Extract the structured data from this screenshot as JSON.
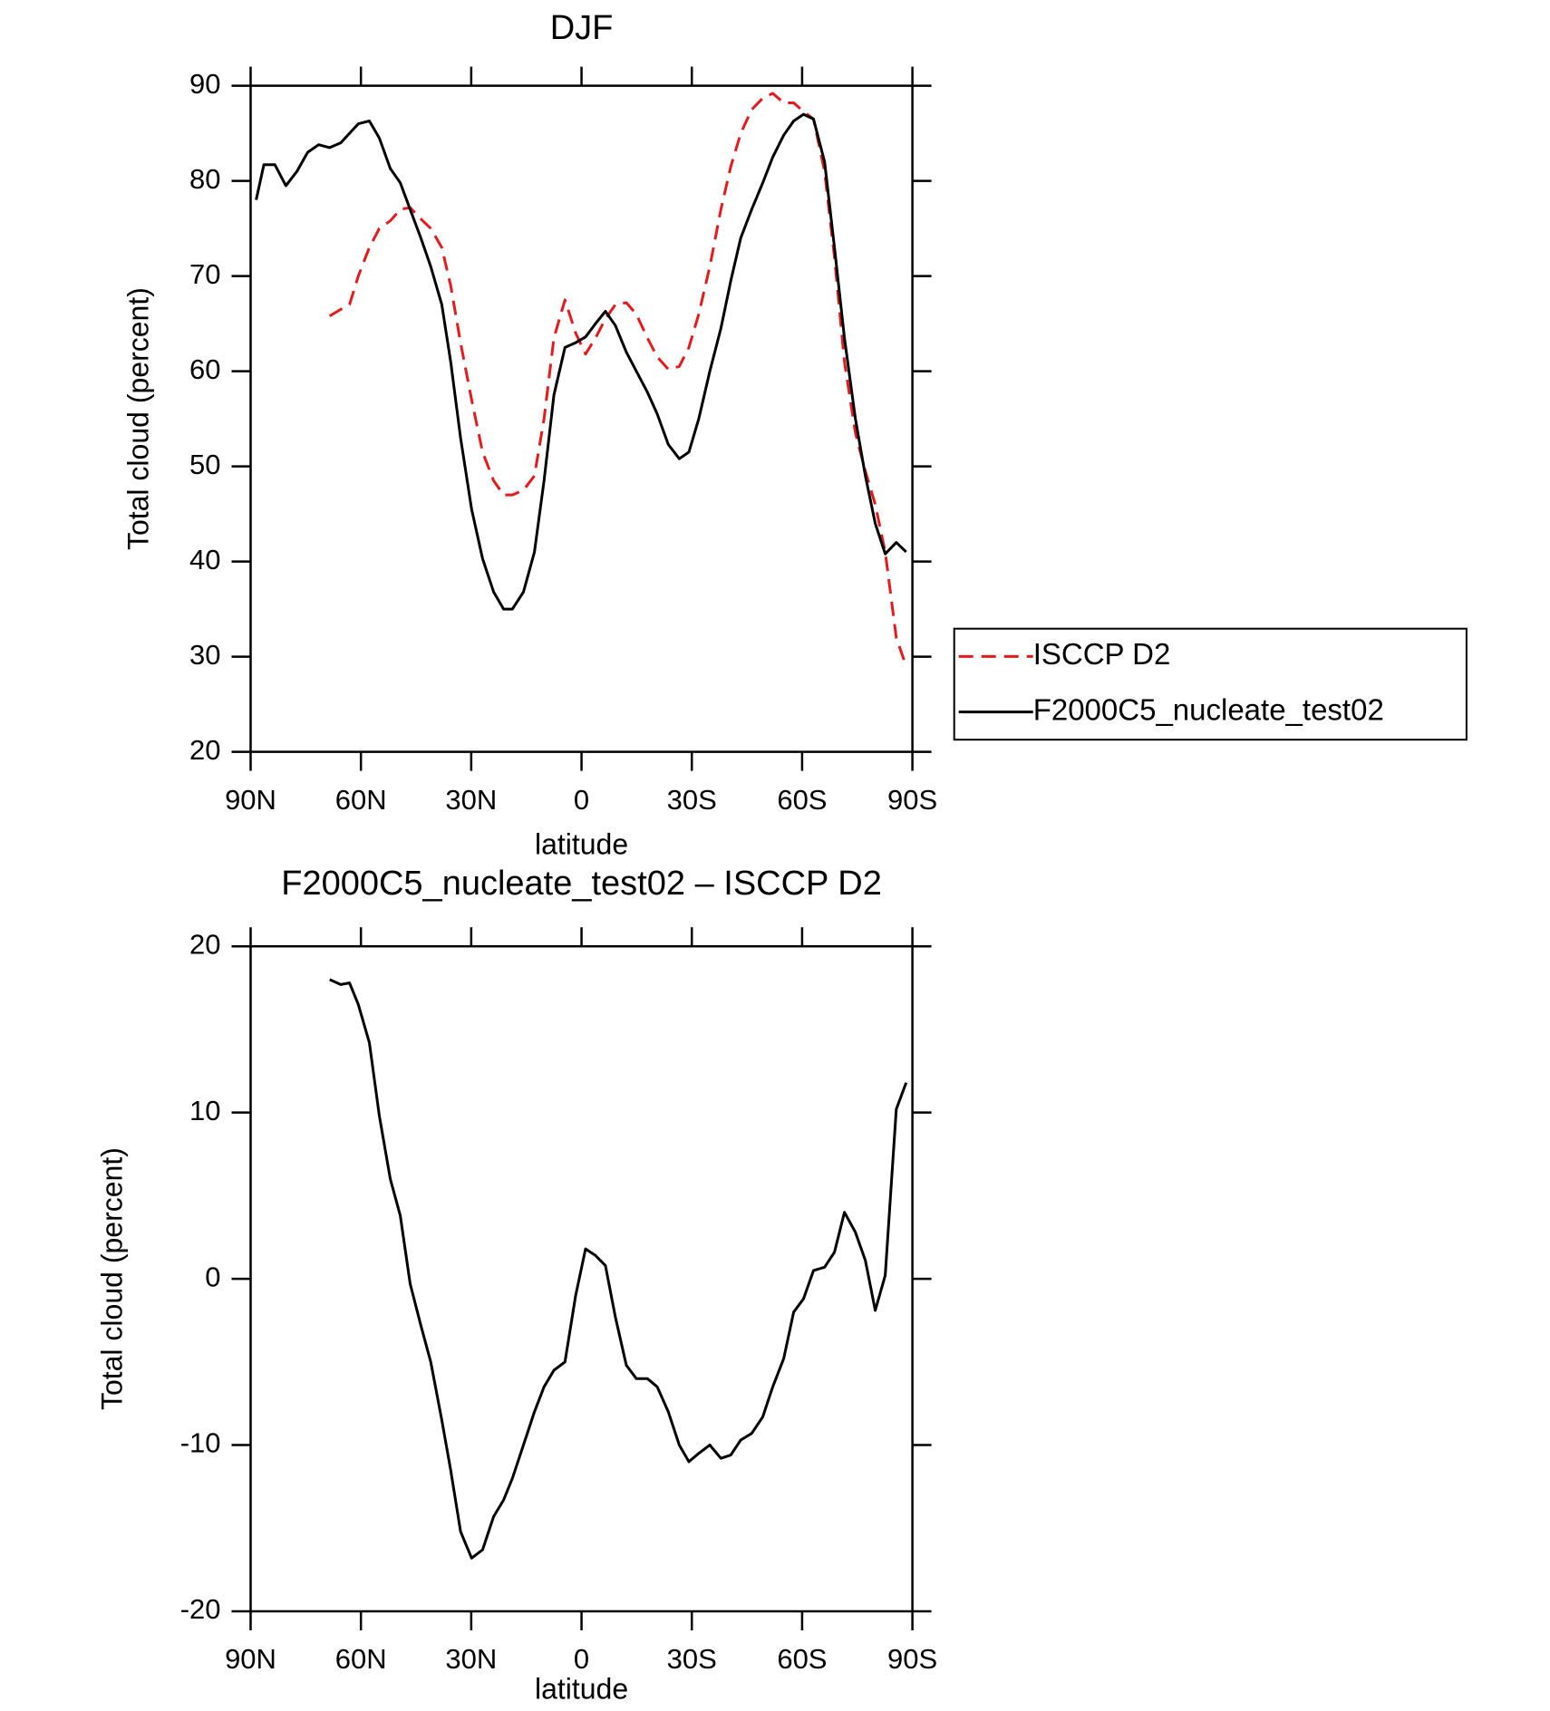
{
  "chart_data": [
    {
      "type": "line",
      "title": "DJF",
      "xlabel": "latitude",
      "ylabel": "Total cloud (percent)",
      "x": [
        88.5,
        86.4,
        83.4,
        80.4,
        77.4,
        74.5,
        71.5,
        68.5,
        65.5,
        63.1,
        60.7,
        57.7,
        55.0,
        52.0,
        49.3,
        46.6,
        43.7,
        41.0,
        38.0,
        35.6,
        32.9,
        29.9,
        26.9,
        23.9,
        21.2,
        18.8,
        15.8,
        12.8,
        10.2,
        7.5,
        4.5,
        1.6,
        -1.1,
        -3.8,
        -6.5,
        -9.2,
        -12.2,
        -14.9,
        -17.9,
        -20.6,
        -23.6,
        -26.6,
        -29.2,
        -31.9,
        -34.9,
        -37.9,
        -40.6,
        -43.3,
        -46.3,
        -49.3,
        -52.0,
        -55.0,
        -57.7,
        -60.4,
        -63.1,
        -66.1,
        -68.8,
        -71.5,
        -74.5,
        -77.2,
        -79.9,
        -82.6,
        -85.6,
        -88.3
      ],
      "xlim": [
        90,
        -90
      ],
      "xticks": [
        {
          "value": 90,
          "label": "90N"
        },
        {
          "value": 60,
          "label": "60N"
        },
        {
          "value": 30,
          "label": "30N"
        },
        0,
        {
          "value": -30,
          "label": "30S"
        },
        {
          "value": -60,
          "label": "60S"
        },
        {
          "value": -90,
          "label": "90S"
        }
      ],
      "ylim": [
        20,
        90
      ],
      "yticks": [
        20,
        30,
        40,
        50,
        60,
        70,
        80,
        90
      ],
      "legend": "right",
      "series": [
        {
          "name": "ISCCP D2",
          "color": "#e41a1c",
          "dashed": true,
          "values": [
            null,
            null,
            null,
            null,
            null,
            null,
            null,
            65.8,
            66.5,
            67,
            70,
            73,
            75,
            75.8,
            77,
            77.2,
            76,
            75,
            73,
            69,
            63,
            57,
            51.5,
            48.5,
            47,
            47,
            47.5,
            49,
            55,
            63.5,
            67.5,
            64,
            61.8,
            63.5,
            65.5,
            67,
            67.2,
            66,
            63.5,
            61.5,
            60.2,
            60.5,
            62.5,
            66,
            71,
            77,
            81.5,
            85,
            87.5,
            88.7,
            89.2,
            88.2,
            88.2,
            87.3,
            86.5,
            81,
            72,
            61,
            53.5,
            49.5,
            46,
            41,
            32,
            29
          ]
        },
        {
          "name": "F2000C5_nucleate_test02",
          "color": "#000000",
          "dashed": false,
          "values": [
            78,
            81.7,
            81.7,
            79.5,
            81,
            83,
            83.8,
            83.5,
            84,
            85,
            86,
            86.3,
            84.5,
            81.3,
            79.8,
            77,
            74,
            71,
            67,
            61,
            53,
            45.5,
            40.3,
            36.8,
            35,
            35,
            36.8,
            41,
            48.5,
            57.5,
            62.5,
            63,
            63.6,
            65,
            66.3,
            64.8,
            62,
            60,
            57.8,
            55.5,
            52.3,
            50.8,
            51.5,
            55,
            60,
            64.5,
            69.5,
            74,
            77,
            79.8,
            82.5,
            84.8,
            86.3,
            87,
            86.5,
            82,
            73,
            63.5,
            55,
            49,
            44,
            40.8,
            42,
            41
          ]
        }
      ]
    },
    {
      "type": "line",
      "title": "F2000C5_nucleate_test02 – ISCCP D2",
      "xlabel": "latitude",
      "ylabel": "Total cloud (percent)",
      "x": [
        88.5,
        86.4,
        83.4,
        80.4,
        77.4,
        74.5,
        71.5,
        68.5,
        65.5,
        63.1,
        60.7,
        57.7,
        55.0,
        52.0,
        49.3,
        46.6,
        43.7,
        41.0,
        38.0,
        35.6,
        32.9,
        29.9,
        26.9,
        23.9,
        21.2,
        18.8,
        15.8,
        12.8,
        10.2,
        7.5,
        4.5,
        1.6,
        -1.1,
        -3.8,
        -6.5,
        -9.2,
        -12.2,
        -14.9,
        -17.9,
        -20.6,
        -23.6,
        -26.6,
        -29.2,
        -31.9,
        -34.9,
        -37.9,
        -40.6,
        -43.3,
        -46.3,
        -49.3,
        -52.0,
        -55.0,
        -57.7,
        -60.4,
        -63.1,
        -66.1,
        -68.8,
        -71.5,
        -74.5,
        -77.2,
        -79.9,
        -82.6,
        -85.6,
        -88.3
      ],
      "xlim": [
        90,
        -90
      ],
      "xticks": [
        {
          "value": 90,
          "label": "90N"
        },
        {
          "value": 60,
          "label": "60N"
        },
        {
          "value": 30,
          "label": "30N"
        },
        0,
        {
          "value": -30,
          "label": "30S"
        },
        {
          "value": -60,
          "label": "60S"
        },
        {
          "value": -90,
          "label": "90S"
        }
      ],
      "ylim": [
        -20,
        20
      ],
      "yticks": [
        -20,
        -10,
        0,
        10,
        20
      ],
      "series": [
        {
          "color": "#000000",
          "dashed": false,
          "values": [
            null,
            null,
            null,
            null,
            null,
            null,
            null,
            18,
            17.7,
            17.8,
            16.5,
            14.2,
            9.8,
            6,
            3.8,
            -0.3,
            -2.8,
            -5,
            -8.5,
            -11.5,
            -15.2,
            -16.8,
            -16.3,
            -14.3,
            -13.3,
            -12,
            -10,
            -8,
            -6.5,
            -5.5,
            -5,
            -1,
            1.8,
            1.4,
            0.8,
            -2.3,
            -5.2,
            -6,
            -6,
            -6.5,
            -8,
            -10,
            -11,
            -10.5,
            -10,
            -10.8,
            -10.6,
            -9.7,
            -9.3,
            -8.3,
            -6.5,
            -4.8,
            -2,
            -1.2,
            0.5,
            0.7,
            1.6,
            4,
            2.8,
            1.1,
            -1.9,
            0.2,
            10.2,
            11.8
          ]
        }
      ]
    }
  ]
}
